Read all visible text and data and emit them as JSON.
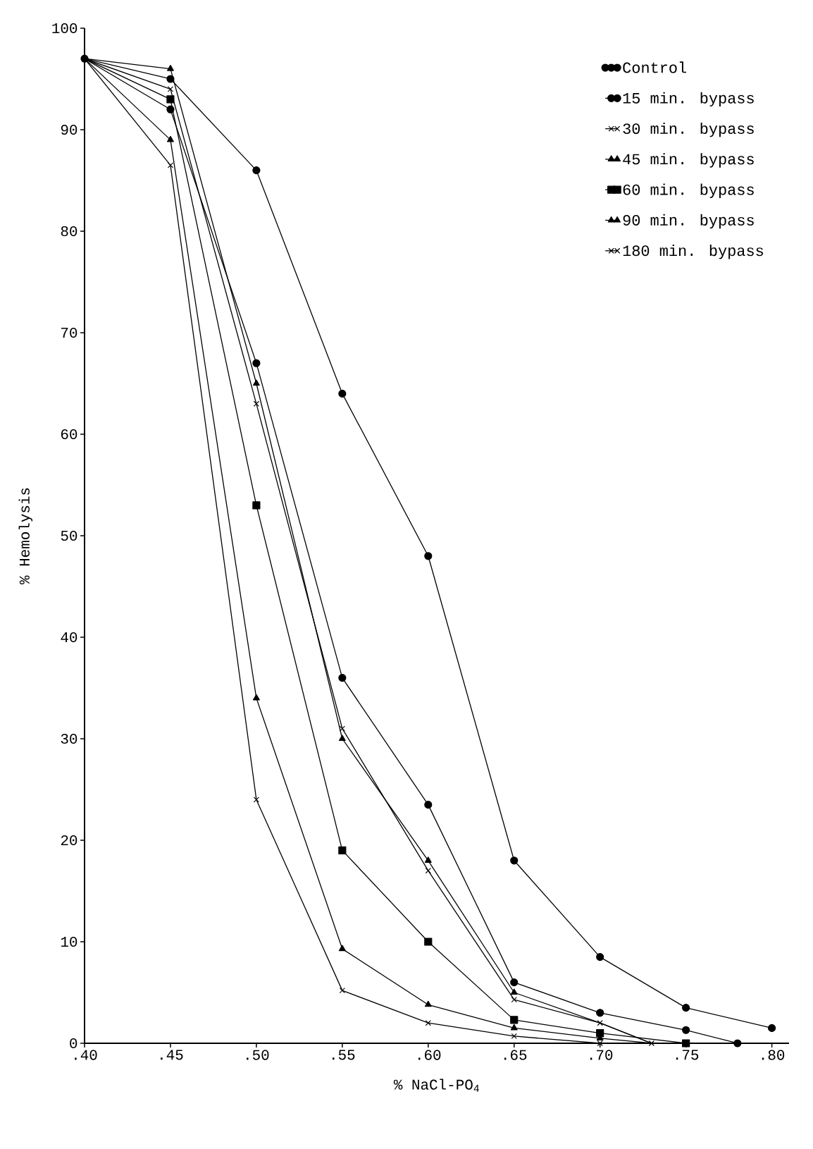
{
  "chart_data": {
    "type": "line",
    "xlabel": "% NaCl-PO$_{4}$",
    "ylabel": "% Hemolysis",
    "xlim": [
      0.4,
      0.81
    ],
    "ylim": [
      0,
      100
    ],
    "xticks": [
      {
        "value": 0.4,
        "label": ".40"
      },
      {
        "value": 0.45,
        "label": ".45"
      },
      {
        "value": 0.5,
        "label": ".50"
      },
      {
        "value": 0.55,
        "label": ".55"
      },
      {
        "value": 0.6,
        "label": ".60"
      },
      {
        "value": 0.65,
        "label": ".65"
      },
      {
        "value": 0.7,
        "label": ".70"
      },
      {
        "value": 0.75,
        "label": ".75"
      },
      {
        "value": 0.8,
        "label": ".80"
      }
    ],
    "yticks": [
      0,
      10,
      20,
      30,
      40,
      50,
      60,
      70,
      80,
      90,
      100
    ],
    "grid": false,
    "legend": "top right",
    "line_style": "solid",
    "series": [
      {
        "name": "Control",
        "color": "#000000",
        "marker": "circle",
        "x": [
          0.4,
          0.45,
          0.5,
          0.55,
          0.6,
          0.65,
          0.7,
          0.75,
          0.8
        ],
        "values": [
          97,
          95,
          86,
          64,
          48,
          18,
          8.5,
          3.5,
          1.5
        ]
      },
      {
        "name": "15 min. bypass",
        "color": "#000000",
        "marker": "circle",
        "x": [
          0.4,
          0.45,
          0.5,
          0.55,
          0.6,
          0.65,
          0.7,
          0.75,
          0.78
        ],
        "values": [
          97,
          92,
          67,
          36,
          23.5,
          6,
          3,
          1.3,
          0
        ]
      },
      {
        "name": "30 min. bypass",
        "color": "#000000",
        "marker": "cross",
        "x": [
          0.4,
          0.45,
          0.5,
          0.55,
          0.6,
          0.65,
          0.7,
          0.73
        ],
        "values": [
          97,
          94,
          63,
          31,
          17,
          4.3,
          2,
          0
        ]
      },
      {
        "name": "45 min. bypass",
        "color": "#000000",
        "marker": "triangle",
        "x": [
          0.4,
          0.45,
          0.5,
          0.55,
          0.6,
          0.65,
          0.7,
          0.73
        ],
        "values": [
          97,
          96,
          65,
          30,
          18,
          5,
          2,
          0
        ]
      },
      {
        "name": "60 min. bypass",
        "color": "#000000",
        "marker": "square",
        "x": [
          0.4,
          0.45,
          0.5,
          0.55,
          0.6,
          0.65,
          0.7,
          0.75
        ],
        "values": [
          97,
          93,
          53,
          19,
          10,
          2.3,
          1,
          0
        ]
      },
      {
        "name": "90 min. bypass",
        "color": "#000000",
        "marker": "triangle",
        "x": [
          0.4,
          0.45,
          0.5,
          0.55,
          0.6,
          0.65,
          0.7,
          0.73
        ],
        "values": [
          97,
          89,
          34,
          9.3,
          3.8,
          1.5,
          0.5,
          0
        ]
      },
      {
        "name": "180 min. bypass",
        "color": "#000000",
        "marker": "cross",
        "x": [
          0.4,
          0.45,
          0.5,
          0.55,
          0.6,
          0.65,
          0.7
        ],
        "values": [
          97,
          86.5,
          24,
          5.2,
          2,
          0.7,
          0
        ]
      }
    ]
  }
}
